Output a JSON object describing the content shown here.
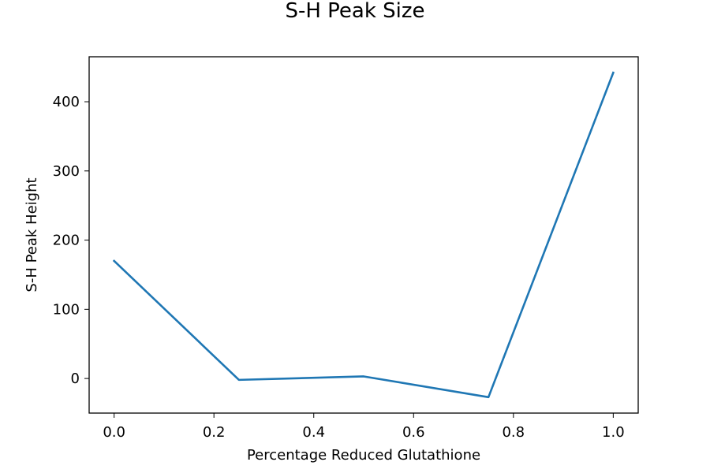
{
  "chart_data": {
    "type": "line",
    "title": "S-H Peak Size",
    "xlabel": "Percentage Reduced Glutathione",
    "ylabel": "S-H Peak Height",
    "x": [
      0.0,
      0.25,
      0.5,
      0.75,
      1.0
    ],
    "series": [
      {
        "values": [
          170,
          -2,
          3,
          -27,
          442
        ],
        "color": "#1f77b4"
      }
    ],
    "xlim": [
      -0.05,
      1.05
    ],
    "ylim": [
      -50,
      465
    ],
    "xticks": [
      0.0,
      0.2,
      0.4,
      0.6,
      0.8,
      1.0
    ],
    "xtick_labels": [
      "0.0",
      "0.2",
      "0.4",
      "0.6",
      "0.8",
      "1.0"
    ],
    "yticks": [
      0,
      100,
      200,
      300,
      400
    ],
    "ytick_labels": [
      "0",
      "100",
      "200",
      "300",
      "400"
    ],
    "grid": false,
    "legend": "none"
  }
}
